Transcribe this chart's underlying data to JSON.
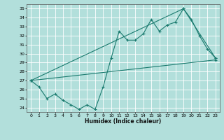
{
  "xlabel": "Humidex (Indice chaleur)",
  "bg_color": "#b2dfdb",
  "grid_color": "#ffffff",
  "line_color": "#1a7a6e",
  "xlim": [
    -0.5,
    23.5
  ],
  "ylim": [
    23.5,
    35.5
  ],
  "xticks": [
    0,
    1,
    2,
    3,
    4,
    5,
    6,
    7,
    8,
    9,
    10,
    11,
    12,
    13,
    14,
    15,
    16,
    17,
    18,
    19,
    20,
    21,
    22,
    23
  ],
  "yticks": [
    24,
    25,
    26,
    27,
    28,
    29,
    30,
    31,
    32,
    33,
    34,
    35
  ],
  "series1_x": [
    0,
    1,
    2,
    3,
    4,
    5,
    6,
    7,
    8,
    9,
    10,
    11,
    12,
    13,
    14,
    15,
    16,
    17,
    18,
    19,
    20,
    21,
    22,
    23
  ],
  "series1_y": [
    27.0,
    26.3,
    25.0,
    25.5,
    24.8,
    24.3,
    23.8,
    24.3,
    23.8,
    26.3,
    29.5,
    32.5,
    31.5,
    31.5,
    32.2,
    33.8,
    32.5,
    33.2,
    33.5,
    35.0,
    33.8,
    32.0,
    30.5,
    29.5
  ],
  "series2_x": [
    0,
    23
  ],
  "series2_y": [
    27.0,
    29.3
  ],
  "series3_x": [
    0,
    19,
    23
  ],
  "series3_y": [
    27.0,
    35.0,
    29.5
  ]
}
